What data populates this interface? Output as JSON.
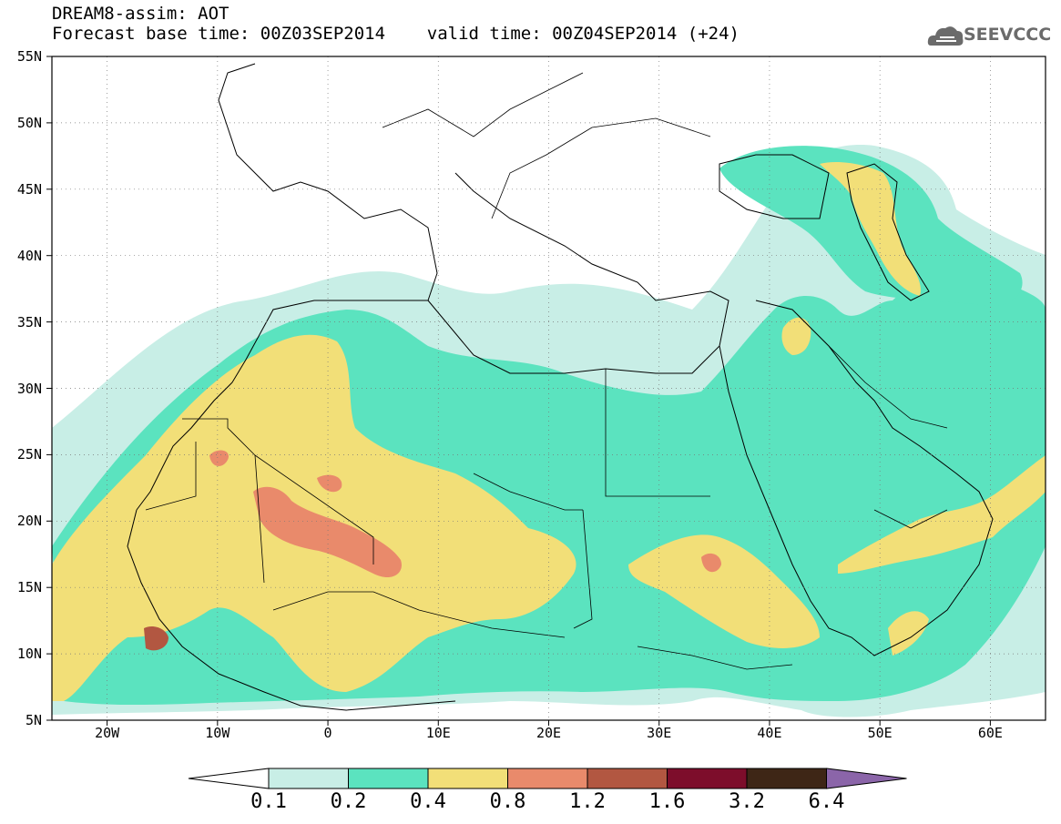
{
  "header": {
    "title_line1": "DREAM8-assim: AOT",
    "title_line2": "Forecast base time: 00Z03SEP2014    valid time: 00Z04SEP2014 (+24)",
    "logo_text": "SEEVCCC"
  },
  "map": {
    "variable": "AOT",
    "projection": "lat-lon",
    "lon_range": [
      -25,
      65
    ],
    "lat_range": [
      5,
      55
    ],
    "lat_labels": [
      "55N",
      "50N",
      "45N",
      "40N",
      "35N",
      "30N",
      "25N",
      "20N",
      "15N",
      "10N",
      "5N"
    ],
    "lon_labels": [
      "20W",
      "10W",
      "0",
      "10E",
      "20E",
      "30E",
      "40E",
      "50E",
      "60E"
    ],
    "grid": "dotted"
  },
  "colorbar": {
    "ticks": [
      "0.1",
      "0.2",
      "0.4",
      "0.8",
      "1.2",
      "1.6",
      "3.2",
      "6.4"
    ],
    "colors": [
      "#c8eee6",
      "#5be3bf",
      "#f2df78",
      "#e98a6b",
      "#b25741",
      "#7d0d2b",
      "#3e2616",
      "#8b65a9"
    ]
  }
}
